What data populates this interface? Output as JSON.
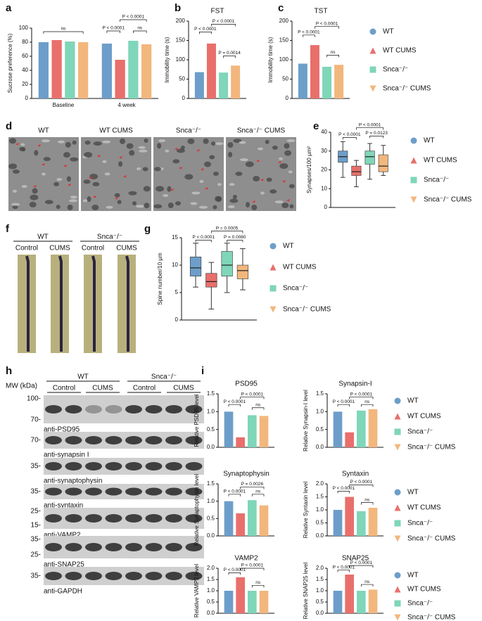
{
  "figure": {
    "panel_letters": [
      "a",
      "b",
      "c",
      "d",
      "e",
      "f",
      "g",
      "h",
      "i"
    ],
    "micrographs": {
      "labels": [
        "WT",
        "WT CUMS",
        "Snca⁻/⁻",
        "Snca⁻/⁻ CUMS"
      ]
    },
    "dendrites": {
      "genotypes": [
        "WT",
        "Snca⁻/⁻"
      ],
      "conditions": [
        "Control",
        "CUMS",
        "Control",
        "CUMS"
      ]
    },
    "western_blot": {
      "mw_label": "MW (kDa)",
      "genotypes": [
        "WT",
        "Snca⁻/⁻"
      ],
      "conditions": [
        "Control",
        "CUMS",
        "Control",
        "CUMS"
      ],
      "blots": [
        {
          "markers": [
            "100-",
            "70-"
          ],
          "label": "anti-PSD95"
        },
        {
          "markers": [
            "70-"
          ],
          "label": "anti-synapsin I"
        },
        {
          "markers": [
            "35-"
          ],
          "label": "anti-synaptophysin"
        },
        {
          "markers": [
            "35-"
          ],
          "label": "anti-syntaxin"
        },
        {
          "markers": [
            "25-",
            "15-"
          ],
          "label": "anti-VAMP2"
        },
        {
          "markers": [
            "35-",
            "25-"
          ],
          "label": "anti-SNAP25"
        },
        {
          "markers": [
            "35-"
          ],
          "label": "anti-GAPDH"
        }
      ]
    }
  },
  "chart_data": [
    {
      "type": "bar",
      "categories": [
        "Baseline",
        "4 week"
      ],
      "ylabel": "Sucrose preference (%)",
      "ylim": [
        0,
        100
      ],
      "yticks": [
        0,
        20,
        40,
        60,
        80,
        100
      ],
      "series": [
        {
          "color": "#6d9ec9",
          "values": [
            80,
            78
          ]
        },
        {
          "color": "#e96f6b",
          "values": [
            83,
            55
          ]
        },
        {
          "color": "#7fd6b8",
          "values": [
            81,
            82
          ]
        },
        {
          "color": "#f2b77d",
          "values": [
            80,
            77
          ]
        }
      ],
      "annotations": [
        "ns",
        "P < 0.0001",
        "P < 0.0001",
        "ns"
      ]
    },
    {
      "type": "bar",
      "title": "FST",
      "ylabel": "Immobility time (s)",
      "ylim": [
        0,
        200
      ],
      "yticks": [
        0,
        50,
        100,
        150,
        200
      ],
      "series": [
        {
          "color": "#6d9ec9",
          "values": [
            68
          ]
        },
        {
          "color": "#e96f6b",
          "values": [
            142
          ]
        },
        {
          "color": "#7fd6b8",
          "values": [
            67
          ]
        },
        {
          "color": "#f2b77d",
          "values": [
            85
          ]
        }
      ],
      "annotations": [
        "P < 0.0001",
        "P < 0.0001",
        "P = 0.0014"
      ]
    },
    {
      "type": "bar",
      "title": "TST",
      "ylabel": "Immobility time (s)",
      "ylim": [
        0,
        200
      ],
      "yticks": [
        0,
        50,
        100,
        150,
        200
      ],
      "legend": true,
      "series": [
        {
          "name": "WT",
          "color": "#6d9ec9",
          "values": [
            90
          ]
        },
        {
          "name": "WT CUMS",
          "color": "#e96f6b",
          "values": [
            138
          ]
        },
        {
          "name": "Snca⁻/⁻",
          "color": "#7fd6b8",
          "values": [
            82
          ]
        },
        {
          "name": "Snca⁻/⁻ CUMS",
          "color": "#f2b77d",
          "values": [
            87
          ]
        }
      ],
      "annotations": [
        "P < 0.0001",
        "P < 0.0001",
        "ns"
      ]
    },
    {
      "type": "box",
      "ylabel": "Synapses/100 µm²",
      "ylim": [
        0,
        40
      ],
      "yticks": [
        0,
        10,
        20,
        30,
        40
      ],
      "legend": true,
      "series": [
        {
          "name": "WT",
          "color": "#6d9ec9",
          "min": 16,
          "q1": 24,
          "median": 27,
          "q3": 30,
          "max": 35
        },
        {
          "name": "WT CUMS",
          "color": "#e96f6b",
          "min": 11,
          "q1": 17,
          "median": 19,
          "q3": 22,
          "max": 25
        },
        {
          "name": "Snca⁻/⁻",
          "color": "#7fd6b8",
          "min": 15,
          "q1": 23,
          "median": 27,
          "q3": 30,
          "max": 34
        },
        {
          "name": "Snca⁻/⁻ CUMS",
          "color": "#f2b77d",
          "min": 17,
          "q1": 19,
          "median": 22,
          "q3": 28,
          "max": 33
        }
      ],
      "annotations": [
        "P < 0.0001",
        "P < 0.0001",
        "P = 0.0123"
      ]
    },
    {
      "type": "box",
      "ylabel": "Spine number/10 µm",
      "ylim": [
        0,
        15
      ],
      "yticks": [
        0,
        5,
        10,
        15
      ],
      "legend": true,
      "series": [
        {
          "name": "WT",
          "color": "#6d9ec9",
          "min": 6,
          "q1": 8,
          "median": 9.5,
          "q3": 11.5,
          "max": 14
        },
        {
          "name": "WT CUMS",
          "color": "#e96f6b",
          "min": 2,
          "q1": 6,
          "median": 7,
          "q3": 8.5,
          "max": 10.5
        },
        {
          "name": "Snca⁻/⁻",
          "color": "#7fd6b8",
          "min": 5,
          "q1": 8,
          "median": 10,
          "q3": 12.5,
          "max": 14
        },
        {
          "name": "Snca⁻/⁻ CUMS",
          "color": "#f2b77d",
          "min": 5.5,
          "q1": 7.5,
          "median": 9,
          "q3": 10,
          "max": 13
        }
      ],
      "annotations": [
        "P < 0.0001",
        "P = 0.0005",
        "P = 0.0080"
      ]
    },
    {
      "type": "bar",
      "title": "PSD95",
      "ylabel": "Relative PSD95 level",
      "ylim": [
        0,
        1.5
      ],
      "yticks": [
        {
          "value": 0,
          "label": "0.0"
        },
        {
          "value": 0.5,
          "label": "0.5"
        },
        {
          "value": 1,
          "label": "1.0"
        },
        {
          "value": 1.5,
          "label": "1.5"
        }
      ],
      "series": [
        {
          "color": "#6d9ec9",
          "values": [
            1.0
          ]
        },
        {
          "color": "#e96f6b",
          "values": [
            0.28
          ]
        },
        {
          "color": "#7fd6b8",
          "values": [
            0.9
          ]
        },
        {
          "color": "#f2b77d",
          "values": [
            0.88
          ]
        }
      ],
      "annotations": [
        "P < 0.0001",
        "P < 0.0001",
        "ns"
      ]
    },
    {
      "type": "bar",
      "title": "Synapsin-I",
      "ylabel": "Relative Synapsin-I level",
      "ylim": [
        0,
        1.5
      ],
      "yticks": [
        {
          "value": 0,
          "label": "0.0"
        },
        {
          "value": 0.5,
          "label": "0.5"
        },
        {
          "value": 1,
          "label": "1.0"
        },
        {
          "value": 1.5,
          "label": "1.5"
        }
      ],
      "legend": true,
      "series": [
        {
          "name": "WT",
          "color": "#6d9ec9",
          "values": [
            1.0
          ]
        },
        {
          "name": "WT CUMS",
          "color": "#e96f6b",
          "values": [
            0.42
          ]
        },
        {
          "name": "Snca⁻/⁻",
          "color": "#7fd6b8",
          "values": [
            1.03
          ]
        },
        {
          "name": "Snca⁻/⁻ CUMS",
          "color": "#f2b77d",
          "values": [
            1.07
          ]
        }
      ],
      "annotations": [
        "P < 0.0001",
        "P < 0.0001",
        "ns"
      ]
    },
    {
      "type": "bar",
      "title": "Synaptophysin",
      "ylabel": "Relative Synaptophysin level",
      "ylim": [
        0,
        1.5
      ],
      "yticks": [
        {
          "value": 0,
          "label": "0.0"
        },
        {
          "value": 0.5,
          "label": "0.5"
        },
        {
          "value": 1,
          "label": "1.0"
        },
        {
          "value": 1.5,
          "label": "1.5"
        }
      ],
      "series": [
        {
          "color": "#6d9ec9",
          "values": [
            1.0
          ]
        },
        {
          "color": "#e96f6b",
          "values": [
            0.65
          ]
        },
        {
          "color": "#7fd6b8",
          "values": [
            1.03
          ]
        },
        {
          "color": "#f2b77d",
          "values": [
            0.88
          ]
        }
      ],
      "annotations": [
        "P < 0.0001",
        "P = 0.0026",
        "ns"
      ]
    },
    {
      "type": "bar",
      "title": "Syntaxin",
      "ylabel": "Relative Syntaxin level",
      "ylim": [
        0,
        2
      ],
      "yticks": [
        {
          "value": 0,
          "label": "0.0"
        },
        {
          "value": 0.5,
          "label": "0.5"
        },
        {
          "value": 1,
          "label": "1.0"
        },
        {
          "value": 1.5,
          "label": "1.5"
        },
        {
          "value": 2,
          "label": "2.0"
        }
      ],
      "legend": true,
      "series": [
        {
          "name": "WT",
          "color": "#6d9ec9",
          "values": [
            1.0
          ]
        },
        {
          "name": "WT CUMS",
          "color": "#e96f6b",
          "values": [
            1.5
          ]
        },
        {
          "name": "Snca⁻/⁻",
          "color": "#7fd6b8",
          "values": [
            0.95
          ]
        },
        {
          "name": "Snca⁻/⁻ CUMS",
          "color": "#f2b77d",
          "values": [
            1.08
          ]
        }
      ],
      "annotations": [
        "P < 0.0001",
        "P < 0.0001",
        "ns"
      ]
    },
    {
      "type": "bar",
      "title": "VAMP2",
      "ylabel": "Relative VAMP2 level",
      "ylim": [
        0,
        2
      ],
      "yticks": [
        {
          "value": 0,
          "label": "0.0"
        },
        {
          "value": 0.5,
          "label": "0.5"
        },
        {
          "value": 1,
          "label": "1.0"
        },
        {
          "value": 1.5,
          "label": "1.5"
        },
        {
          "value": 2,
          "label": "2.0"
        }
      ],
      "series": [
        {
          "color": "#6d9ec9",
          "values": [
            1.0
          ]
        },
        {
          "color": "#e96f6b",
          "values": [
            1.6
          ]
        },
        {
          "color": "#7fd6b8",
          "values": [
            1.0
          ]
        },
        {
          "color": "#f2b77d",
          "values": [
            1.0
          ]
        }
      ],
      "annotations": [
        "P < 0.0001",
        "P < 0.0001",
        "ns"
      ]
    },
    {
      "type": "bar",
      "title": "SNAP25",
      "ylabel": "Relative SNAP25 level",
      "ylim": [
        0,
        2
      ],
      "yticks": [
        {
          "value": 0,
          "label": "0.0"
        },
        {
          "value": 0.5,
          "label": "0.5"
        },
        {
          "value": 1,
          "label": "1.0"
        },
        {
          "value": 1.5,
          "label": "1.5"
        },
        {
          "value": 2,
          "label": "2.0"
        }
      ],
      "legend": true,
      "series": [
        {
          "name": "WT",
          "color": "#6d9ec9",
          "values": [
            1.0
          ]
        },
        {
          "name": "WT CUMS",
          "color": "#e96f6b",
          "values": [
            1.72
          ]
        },
        {
          "name": "Snca⁻/⁻",
          "color": "#7fd6b8",
          "values": [
            1.0
          ]
        },
        {
          "name": "Snca⁻/⁻ CUMS",
          "color": "#f2b77d",
          "values": [
            1.05
          ]
        }
      ],
      "annotations": [
        "P < 0.0001",
        "P < 0.0001",
        "ns"
      ]
    }
  ]
}
